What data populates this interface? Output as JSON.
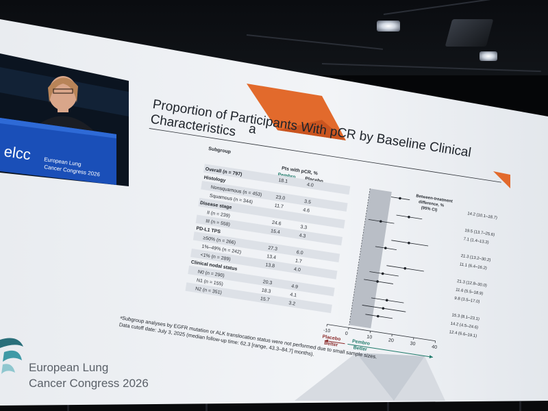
{
  "slide": {
    "title_line1": "Proportion of Participants With pCR by Baseline Clinical",
    "title_line2": "Characteristics",
    "title_superscript": "a",
    "header_subgroup": "Subgroup",
    "header_pts_pcr": "Pts with pCR, %",
    "header_pembro": "Pembro",
    "header_placebo": "Placebo",
    "diff_header_line1": "Between-treatment",
    "diff_header_line2": "difference, %",
    "diff_header_line3": "(95% CI)",
    "rows": [
      {
        "label": "Overall  (n = 797)",
        "bold": true,
        "pembro": "18.1",
        "placebo": "4.0",
        "diff": "14.2 (10.1–18.7)"
      },
      {
        "label": "Histology",
        "bold": true,
        "pembro": "",
        "placebo": "",
        "diff": ""
      },
      {
        "label": "Nonsquamous (n = 453)",
        "bold": false,
        "pembro": "23.0",
        "placebo": "3.5",
        "diff": "19.5 (13.7–25.6)"
      },
      {
        "label": "Squamous (n = 344)",
        "bold": false,
        "pembro": "11.7",
        "placebo": "4.6",
        "diff": "7.1 (1.4–13.3)"
      },
      {
        "label": "Disease stage",
        "bold": true,
        "pembro": "",
        "placebo": "",
        "diff": ""
      },
      {
        "label": "II (n = 239)",
        "bold": false,
        "pembro": "24.6",
        "placebo": "3.3",
        "diff": "21.3 (13.2–30.2)"
      },
      {
        "label": "III (n = 558)",
        "bold": false,
        "pembro": "15.4",
        "placebo": "4.3",
        "diff": "11.1 (6.4–16.2)"
      },
      {
        "label": "PD-L1 TPS",
        "bold": true,
        "pembro": "",
        "placebo": "",
        "diff": ""
      },
      {
        "label": "≥50% (n = 266)",
        "bold": false,
        "pembro": "27.3",
        "placebo": "6.0",
        "diff": "21.3 (12.8–30.0)"
      },
      {
        "label": "1%–49% (n = 242)",
        "bold": false,
        "pembro": "13.4",
        "placebo": "1.7",
        "diff": "11.6 (5.5–18.9)"
      },
      {
        "label": "<1% (n = 289)",
        "bold": false,
        "pembro": "13.8",
        "placebo": "4.0",
        "diff": "9.8 (3.5–17.0)"
      },
      {
        "label": "Clinical nodal status",
        "bold": true,
        "pembro": "",
        "placebo": "",
        "diff": ""
      },
      {
        "label": "N0 (n = 290)",
        "bold": false,
        "pembro": "20.3",
        "placebo": "4.9",
        "diff": "15.3 (8.1–23.1)"
      },
      {
        "label": "N1 (n = 155)",
        "bold": false,
        "pembro": "18.3",
        "placebo": "4.1",
        "diff": "14.2 (4.5–24.6)"
      },
      {
        "label": "N2 (n = 351)",
        "bold": false,
        "pembro": "15.7",
        "placebo": "3.2",
        "diff": "12.4 (6.6–19.1)"
      }
    ],
    "footnote_line1": "ᵃSubgroup analyses by EGFR mutation or ALK translocation status were not performed due to small sample sizes.",
    "footnote_line2": "Data cutoff date: July 3, 2025 (median follow-up time: 62.3 [range, 43.3–84.7] months).",
    "axis_ticks": [
      "-10",
      "0",
      "10",
      "20",
      "30",
      "40"
    ],
    "placebo_better_1": "Placebo",
    "placebo_better_2": "Better",
    "pembro_better_1": "Pembro",
    "pembro_better_2": "Better",
    "congress_line1": "European Lung",
    "congress_line2": "Cancer Congress 2026"
  },
  "speaker_video": {
    "podium_logo_text": "elcc",
    "podium_line1": "European Lung",
    "podium_line2": "Cancer Congress 2026"
  },
  "chart_data": {
    "type": "scatter",
    "title": "",
    "xlabel": "",
    "xlim": [
      -10,
      40
    ],
    "categories": [
      "Overall",
      "Nonsquamous",
      "Squamous",
      "II",
      "III",
      "≥50%",
      "1%–49%",
      "<1%",
      "N0",
      "N1",
      "N2"
    ],
    "series": [
      {
        "values": [
          14.2,
          19.5,
          7.1,
          21.3,
          11.1,
          21.3,
          11.6,
          9.8,
          15.3,
          14.2,
          12.4
        ],
        "ci_low": [
          10.1,
          13.7,
          1.4,
          13.2,
          6.4,
          12.8,
          5.5,
          3.5,
          8.1,
          4.5,
          6.6
        ],
        "ci_high": [
          18.7,
          25.6,
          13.3,
          30.2,
          16.2,
          30.0,
          18.9,
          17.0,
          23.1,
          24.6,
          19.1
        ]
      }
    ]
  },
  "colors": {
    "slide_background": "#eef1f5",
    "pembro_green": "#1f7a6a",
    "placebo_red": "#8a2a2a",
    "accent_orange": "#e06a2a",
    "brand_teal": "#2a6f7a"
  }
}
